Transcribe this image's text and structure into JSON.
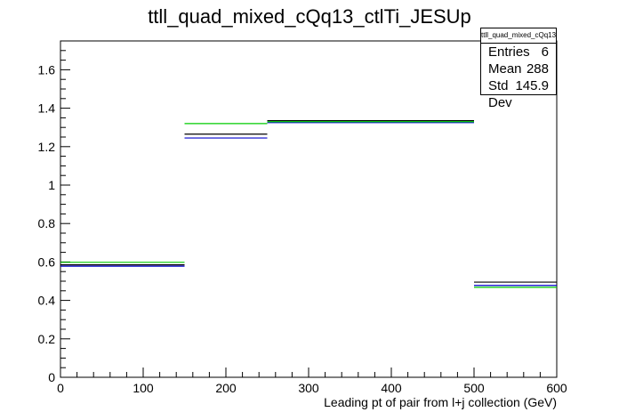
{
  "chart_data": {
    "type": "histogram",
    "title": "ttll_quad_mixed_cQq13_ctlTi_JESUp",
    "xlabel": "Leading pt of pair from l+j collection (GeV)",
    "ylabel": "",
    "xlim": [
      0,
      600
    ],
    "ylim": [
      0,
      1.75
    ],
    "x_ticks": [
      "0",
      "100",
      "200",
      "300",
      "400",
      "500",
      "600"
    ],
    "y_ticks": [
      "0",
      "0.2",
      "0.4",
      "0.6",
      "0.8",
      "1",
      "1.2",
      "1.4",
      "1.6"
    ],
    "bin_edges": [
      0,
      150,
      250,
      500,
      600
    ],
    "grid": false,
    "series": [
      {
        "color": "#000000",
        "values": [
          0.585,
          1.265,
          1.335,
          0.495
        ]
      },
      {
        "color": "#0000cc",
        "values": [
          0.578,
          1.245,
          1.325,
          0.478
        ]
      },
      {
        "color": "#00cc00",
        "values": [
          0.598,
          1.32,
          1.33,
          0.468
        ]
      }
    ],
    "stats": {
      "title": "ttll_quad_mixed_cQq13_ctlTi_JESUp",
      "rows": [
        {
          "label": "Entries",
          "value": "6"
        },
        {
          "label": "Mean",
          "value": "288"
        },
        {
          "label": "Std Dev",
          "value": "145.9"
        }
      ]
    }
  }
}
